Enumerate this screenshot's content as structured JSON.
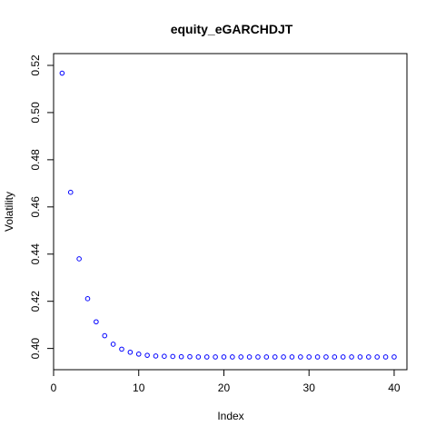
{
  "chart_data": {
    "type": "scatter",
    "title": "equity_eGARCHDJT",
    "xlabel": "Index",
    "ylabel": "Volatility",
    "xlim": [
      0,
      41.5
    ],
    "ylim": [
      0.391,
      0.525
    ],
    "xticks": [
      0,
      10,
      20,
      30,
      40
    ],
    "yticks": [
      0.4,
      0.42,
      0.44,
      0.46,
      0.48,
      0.5,
      0.52
    ],
    "ytick_labels": [
      "0.40",
      "0.42",
      "0.44",
      "0.46",
      "0.48",
      "0.50",
      "0.52"
    ],
    "grid": false,
    "point_color": "#0000ff",
    "x": [
      1,
      2,
      3,
      4,
      5,
      6,
      7,
      8,
      9,
      10,
      11,
      12,
      13,
      14,
      15,
      16,
      17,
      18,
      19,
      20,
      21,
      22,
      23,
      24,
      25,
      26,
      27,
      28,
      29,
      30,
      31,
      32,
      33,
      34,
      35,
      36,
      37,
      38,
      39,
      40
    ],
    "y": [
      0.5167,
      0.4662,
      0.438,
      0.4211,
      0.4113,
      0.4054,
      0.4018,
      0.3997,
      0.3984,
      0.3976,
      0.3971,
      0.3968,
      0.3967,
      0.3966,
      0.3965,
      0.3965,
      0.3964,
      0.3964,
      0.3964,
      0.3964,
      0.3964,
      0.3964,
      0.3964,
      0.3964,
      0.3964,
      0.3964,
      0.3964,
      0.3964,
      0.3964,
      0.3964,
      0.3964,
      0.3964,
      0.3964,
      0.3964,
      0.3964,
      0.3964,
      0.3964,
      0.3964,
      0.3964,
      0.3964
    ]
  }
}
